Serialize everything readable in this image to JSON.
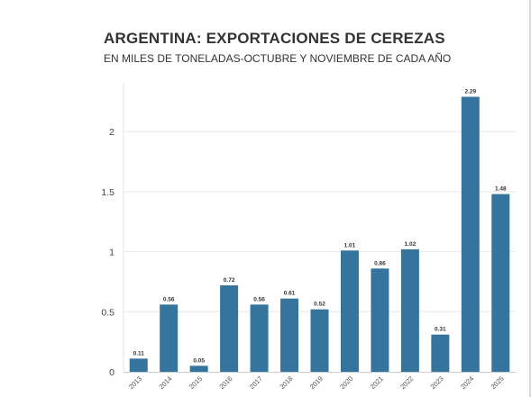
{
  "chart_data": {
    "type": "bar",
    "title": "ARGENTINA: EXPORTACIONES DE CEREZAS",
    "subtitle": "EN MILES DE TONELADAS-OCTUBRE Y NOVIEMBRE DE CADA AÑO",
    "categories": [
      "2013",
      "2014",
      "2015",
      "2016",
      "2017",
      "2018",
      "2019",
      "2020",
      "2021",
      "2022",
      "2023",
      "2024",
      "2025"
    ],
    "values": [
      0.11,
      0.56,
      0.05,
      0.72,
      0.56,
      0.61,
      0.52,
      1.01,
      0.86,
      1.02,
      0.31,
      2.29,
      1.48
    ],
    "data_labels": [
      "0.11",
      "0.56",
      "0.05",
      "0.72",
      "0.56",
      "0.61",
      "0.52",
      "1.01",
      "0.86",
      "1.02",
      "0.31",
      "2.29",
      "1.48"
    ],
    "xlabel": "",
    "ylabel": "",
    "ylim": [
      0,
      2.3
    ],
    "yticks": [
      0,
      0.5,
      1,
      1.5,
      2
    ],
    "ytick_labels": [
      "0",
      "0.5",
      "1",
      "1.5",
      "2"
    ],
    "grid": true,
    "legend": "none",
    "bar_color": "#35759d"
  }
}
